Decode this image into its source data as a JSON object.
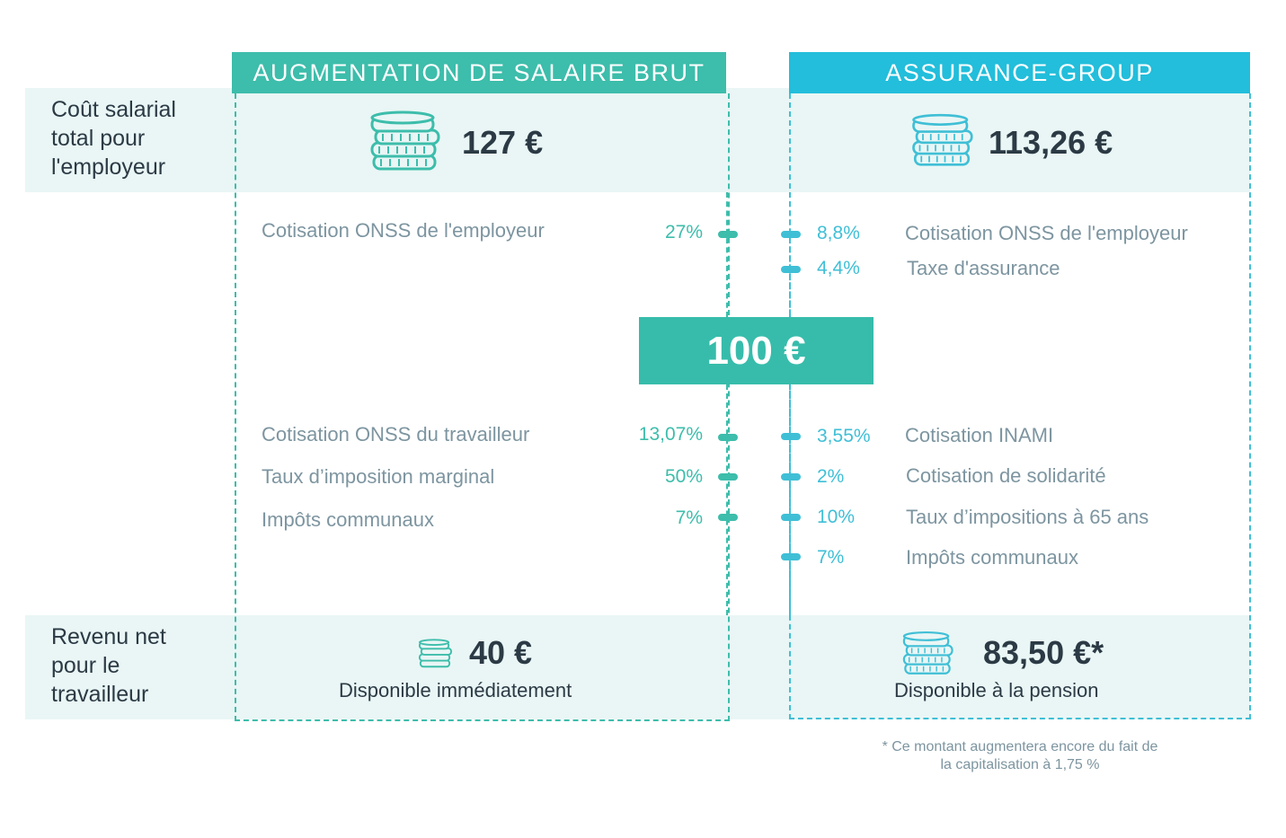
{
  "headers": {
    "left": "AUGMENTATION DE SALAIRE BRUT",
    "right": "ASSURANCE-GROUP"
  },
  "colors": {
    "green": "#3dbdab",
    "blue": "#22bedb",
    "band": "#e9f6f5",
    "text_dark": "#2c3a45",
    "text_grey": "#7d95a0"
  },
  "rows": {
    "employer_cost_label": "Coût salarial\ntotal pour\nl'employeur",
    "net_income_label": "Revenu net\npour le\ntravailleur"
  },
  "employer_cost": {
    "left_amount": "127 €",
    "right_amount": "113,26 €"
  },
  "center_amount": "100 €",
  "left_employer_items": [
    {
      "label": "Cotisation ONSS de l'employeur",
      "pct": "27%"
    }
  ],
  "right_employer_items": [
    {
      "label": "Cotisation ONSS de l'employeur",
      "pct": "8,8%"
    },
    {
      "label": "Taxe d'assurance",
      "pct": "4,4%"
    }
  ],
  "left_worker_items": [
    {
      "label": "Cotisation ONSS du travailleur",
      "pct": "13,07%"
    },
    {
      "label": "Taux d’imposition marginal",
      "pct": "50%"
    },
    {
      "label": "Impôts communaux",
      "pct": "7%"
    }
  ],
  "right_worker_items": [
    {
      "label": "Cotisation INAMI",
      "pct": "3,55%"
    },
    {
      "label": "Cotisation de solidarité",
      "pct": "2%"
    },
    {
      "label": "Taux d’impositions à 65 ans",
      "pct": "10%"
    },
    {
      "label": "Impôts communaux",
      "pct": "7%"
    }
  ],
  "net_income": {
    "left_amount": "40 €",
    "left_note": "Disponible immédiatement",
    "right_amount": "83,50 €*",
    "right_note": "Disponible à la pension"
  },
  "footnote": {
    "line1": "* Ce montant augmentera encore du fait de",
    "line2": "la capitalisation à 1,75 %"
  },
  "icons": {
    "coins": "coin-stack-icon"
  }
}
